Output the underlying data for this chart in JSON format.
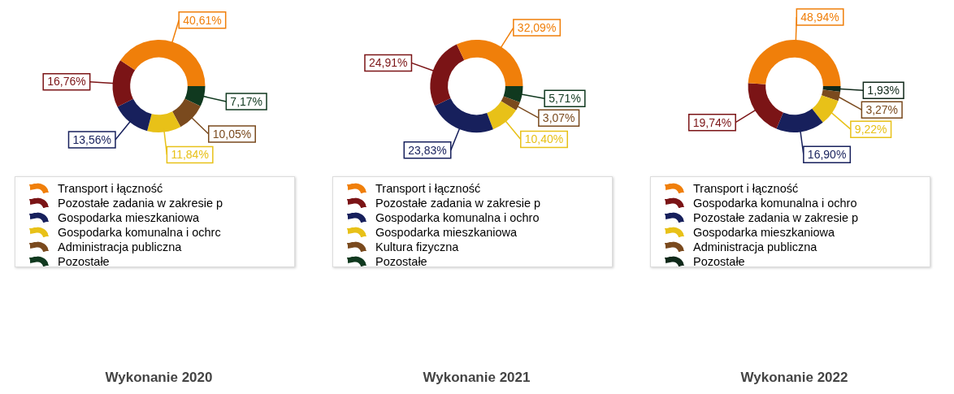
{
  "chart_data": [
    {
      "type": "donut",
      "title": "Wykonanie 2020",
      "legend": "bottom",
      "categories": [
        "Transport i łączność",
        "Pozostałe zadania w zakresie p",
        "Gospodarka mieszkaniowa",
        "Gospodarka komunalna i ochrc",
        "Administracja publiczna",
        "Pozostałe"
      ],
      "values": [
        40.61,
        16.76,
        13.56,
        11.84,
        10.05,
        7.17
      ],
      "value_labels": [
        "40,61%",
        "16,76%",
        "13,56%",
        "11,84%",
        "10,05%",
        "7,17%"
      ],
      "colors": [
        "#f07f0a",
        "#7b1416",
        "#17205c",
        "#e8c118",
        "#7a4a1e",
        "#10391f"
      ]
    },
    {
      "type": "donut",
      "title": "Wykonanie 2021",
      "legend": "bottom",
      "categories": [
        "Transport i łączność",
        "Pozostałe zadania w zakresie p",
        "Gospodarka komunalna i ochro",
        "Gospodarka mieszkaniowa",
        "Kultura fizyczna",
        "Pozostałe"
      ],
      "values": [
        32.09,
        24.91,
        23.83,
        10.4,
        3.07,
        5.71
      ],
      "value_labels": [
        "32,09%",
        "24,91%",
        "23,83%",
        "10,40%",
        "3,07%",
        "5,71%"
      ],
      "colors": [
        "#f07f0a",
        "#7b1416",
        "#17205c",
        "#e8c118",
        "#7a4a1e",
        "#10391f"
      ]
    },
    {
      "type": "donut",
      "title": "Wykonanie 2022",
      "legend": "bottom",
      "categories": [
        "Transport i łączność",
        "Gospodarka komunalna i ochro",
        "Pozostałe zadania w zakresie p",
        "Gospodarka mieszkaniowa",
        "Administracja publiczna",
        "Pozostałe"
      ],
      "values": [
        48.94,
        19.74,
        16.9,
        9.22,
        3.27,
        1.93
      ],
      "value_labels": [
        "48,94%",
        "19,74%",
        "16,90%",
        "9,22%",
        "3,27%",
        "1,93%"
      ],
      "colors": [
        "#f07f0a",
        "#7b1416",
        "#17205c",
        "#e8c118",
        "#7a4a1e",
        "#10291a"
      ]
    }
  ]
}
